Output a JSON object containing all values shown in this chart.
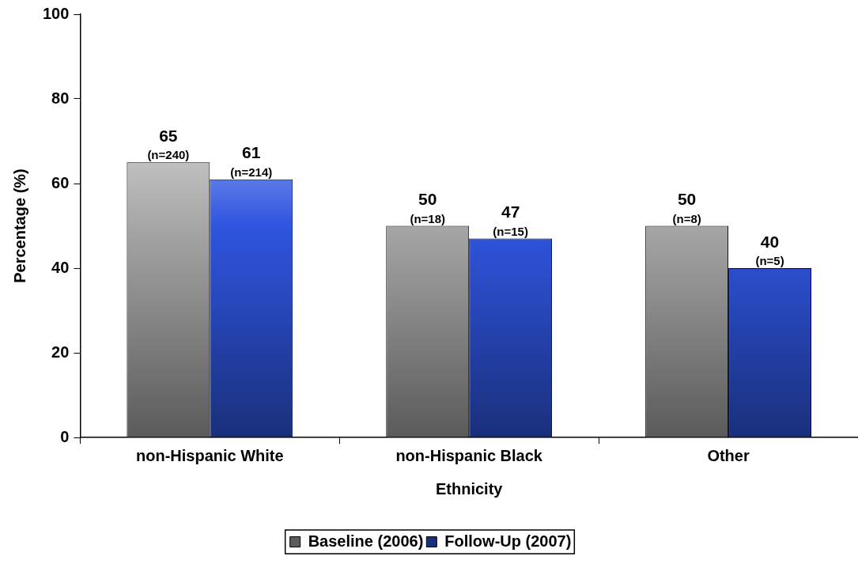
{
  "chart_data": {
    "type": "bar",
    "xlabel": "Ethnicity",
    "ylabel": "Percentage (%)",
    "categories": [
      "non-Hispanic White",
      "non-Hispanic Black",
      "Other"
    ],
    "series": [
      {
        "name": "Baseline (2006)",
        "color": "#a6a6a6",
        "values": [
          65,
          50,
          50
        ],
        "value_labels": [
          "65\n(n=240)",
          "50\n(n=18)",
          "50\n(n=8)"
        ]
      },
      {
        "name": "Follow-Up (2007)",
        "color": "#2f55e0",
        "values": [
          61,
          47,
          40
        ],
        "value_labels": [
          "61\n(n=214)",
          "47\n(n=15)",
          "40\n(n=5)"
        ]
      }
    ],
    "ylim": [
      0,
      100
    ],
    "yticks": [
      0,
      20,
      40,
      60,
      80,
      100
    ],
    "grid": false,
    "legend": "bottom"
  }
}
